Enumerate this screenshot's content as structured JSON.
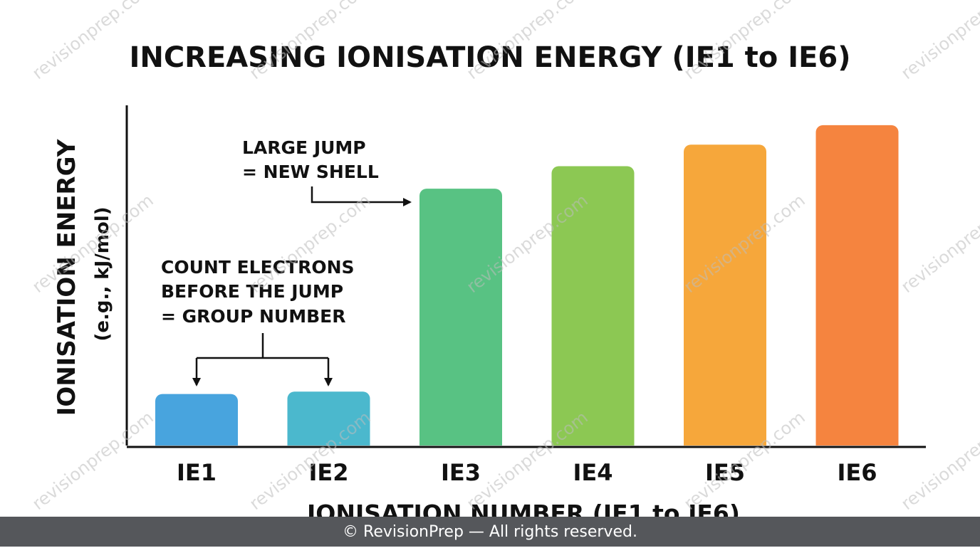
{
  "chart_data": {
    "type": "bar",
    "title": "INCREASING IONISATION ENERGY (IE1 to IE6)",
    "xlabel": "IONISATION NUMBER (IE1 to IE6)",
    "ylabel": "IONISATION ENERGY",
    "ylabel_sub": "(e.g., kJ/mol)",
    "categories": [
      "IE1",
      "IE2",
      "IE3",
      "IE4",
      "IE5",
      "IE6"
    ],
    "values": [
      15.5,
      16.2,
      75.6,
      82.2,
      88.5,
      94.2
    ],
    "ylim": [
      0,
      100
    ],
    "y_ticks_shown": false,
    "grid": false,
    "legend": "none",
    "bar_colors": [
      "#48a4de",
      "#4bb8cd",
      "#58c283",
      "#8cc853",
      "#f6a73b",
      "#f5843f"
    ],
    "annotations": [
      {
        "id": "large-jump",
        "lines": [
          "LARGE JUMP",
          "= NEW SHELL"
        ],
        "points_to": "IE3"
      },
      {
        "id": "count-electrons",
        "lines": [
          "COUNT ELECTRONS",
          "BEFORE THE JUMP",
          "= GROUP NUMBER"
        ],
        "points_to": [
          "IE1",
          "IE2"
        ]
      }
    ]
  },
  "watermark": "revisionprep.com",
  "footer": "© RevisionPrep — All rights reserved."
}
